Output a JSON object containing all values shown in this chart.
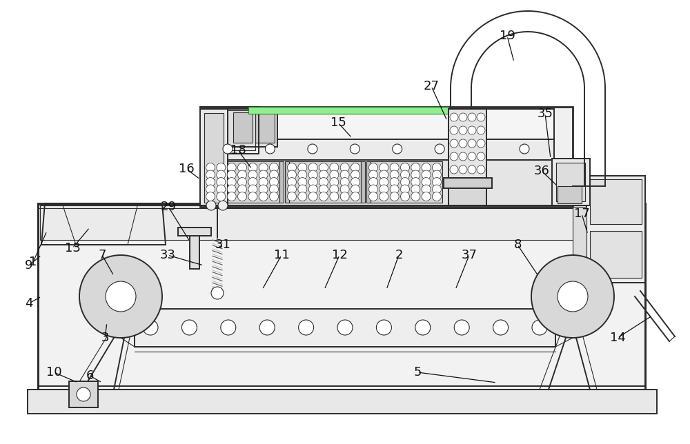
{
  "bg_color": "#ffffff",
  "line_color": "#2a2a2a",
  "lc": "#2a2a2a",
  "fig_width": 10.0,
  "fig_height": 6.44,
  "label_fs": 13,
  "lw_main": 1.4,
  "lw_thin": 0.8,
  "lw_thick": 2.0,
  "lw_med": 1.1
}
